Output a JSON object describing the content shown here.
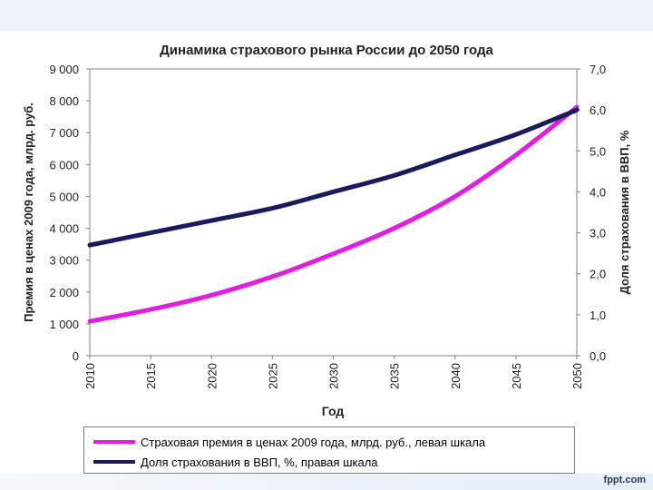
{
  "footer": {
    "brand": "fppt.com"
  },
  "chart_data": {
    "type": "line",
    "title": "Динамика страхового рынка России до 2050 года",
    "xlabel": "Год",
    "ylabel_left": "Премия в ценах 2009 года, млрд. руб.",
    "ylabel_right": "Доля страхования в ВВП, %",
    "x": [
      2010,
      2015,
      2020,
      2025,
      2030,
      2035,
      2040,
      2045,
      2050
    ],
    "x_tick_labels": [
      "2010",
      "2015",
      "2020",
      "2025",
      "2030",
      "2035",
      "2040",
      "2045",
      "2050"
    ],
    "ylim_left": [
      0,
      9000
    ],
    "ylim_right": [
      0,
      7
    ],
    "y_ticks_left": [
      "0",
      "1 000",
      "2 000",
      "3 000",
      "4 000",
      "5 000",
      "6 000",
      "7 000",
      "8 000",
      "9 000"
    ],
    "y_ticks_right": [
      "0,0",
      "1,0",
      "2,0",
      "3,0",
      "4,0",
      "5,0",
      "6,0",
      "7,0"
    ],
    "grid": false,
    "series": [
      {
        "name": "Страховая премия в ценах 2009 года, млрд. руб., левая шкала",
        "axis": "left",
        "color": "#e21de2",
        "values": [
          1080,
          1450,
          1900,
          2480,
          3200,
          4000,
          5000,
          6300,
          7800
        ]
      },
      {
        "name": "Доля страхования в ВВП, %, правая шкала",
        "axis": "right",
        "color": "#1a1a5e",
        "values": [
          2.7,
          3.0,
          3.3,
          3.6,
          4.0,
          4.4,
          4.9,
          5.4,
          6.0
        ]
      }
    ]
  }
}
